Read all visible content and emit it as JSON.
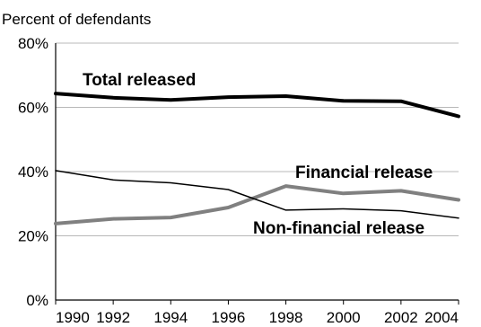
{
  "chart_data": {
    "type": "line",
    "title": "",
    "ylabel": "Percent of defendants",
    "xlabel": "",
    "x": [
      1990,
      1992,
      1994,
      1996,
      1998,
      2000,
      2002,
      2004
    ],
    "x_ticks": [
      "1990",
      "1992",
      "1994",
      "1996",
      "1998",
      "2000",
      "2002",
      "2004"
    ],
    "ylim": [
      0,
      80
    ],
    "y_ticks": [
      "0%",
      "20%",
      "40%",
      "60%",
      "80%"
    ],
    "grid": "horizontal",
    "series": [
      {
        "name": "Total released",
        "values": [
          64.3,
          63.0,
          62.3,
          63.2,
          63.5,
          62.0,
          61.9,
          57.2
        ],
        "color": "#000000"
      },
      {
        "name": "Financial release",
        "values": [
          23.8,
          25.3,
          25.7,
          28.8,
          35.5,
          33.2,
          34.0,
          31.2
        ],
        "color": "#808080"
      },
      {
        "name": "Non-financial release",
        "values": [
          40.3,
          37.4,
          36.5,
          34.4,
          28.0,
          28.4,
          27.8,
          25.5
        ],
        "color": "#000000"
      }
    ]
  }
}
